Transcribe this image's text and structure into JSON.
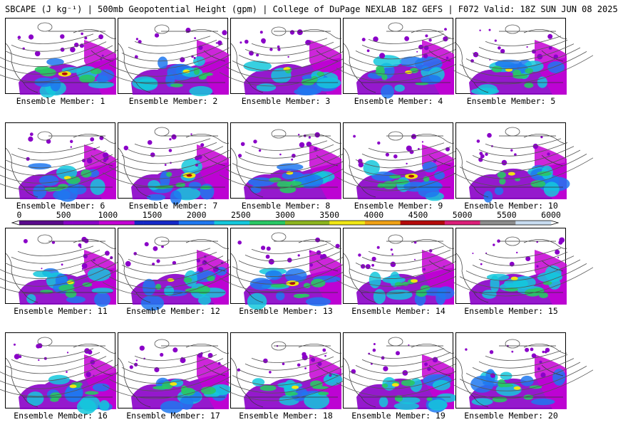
{
  "title": "SBCAPE (J kg⁻¹) | 500mb Geopotential Height (gpm) | College of DuPage NEXLAB 18Z GEFS | F072 Valid: 18Z SUN JUN 08 2025",
  "panels": [
    {
      "label": "Ensemble Member: 1"
    },
    {
      "label": "Ensemble Member: 2"
    },
    {
      "label": "Ensemble Member: 3"
    },
    {
      "label": "Ensemble Member: 4"
    },
    {
      "label": "Ensemble Member: 5"
    },
    {
      "label": "Ensemble Member: 6"
    },
    {
      "label": "Ensemble Member: 7"
    },
    {
      "label": "Ensemble Member: 8"
    },
    {
      "label": "Ensemble Member: 9"
    },
    {
      "label": "Ensemble Member: 10"
    },
    {
      "label": "Ensemble Member: 11"
    },
    {
      "label": "Ensemble Member: 12"
    },
    {
      "label": "Ensemble Member: 13"
    },
    {
      "label": "Ensemble Member: 14"
    },
    {
      "label": "Ensemble Member: 15"
    },
    {
      "label": "Ensemble Member: 16"
    },
    {
      "label": "Ensemble Member: 17"
    },
    {
      "label": "Ensemble Member: 18"
    },
    {
      "label": "Ensemble Member: 19"
    },
    {
      "label": "Ensemble Member: 20"
    }
  ],
  "colorbar": {
    "labels": [
      "0",
      "500",
      "1000",
      "1500",
      "2000",
      "2500",
      "3000",
      "3500",
      "4000",
      "4500",
      "5000",
      "5500",
      "6000"
    ],
    "colors": [
      "#5a0a8c",
      "#8a00c8",
      "#c400d4",
      "#1428c8",
      "#1e78f0",
      "#14c8dc",
      "#28c864",
      "#8cb41e",
      "#f0e614",
      "#f0a014",
      "#b40a0a",
      "#dc1e78",
      "#8c8c8c",
      "#c8dcf0"
    ]
  }
}
